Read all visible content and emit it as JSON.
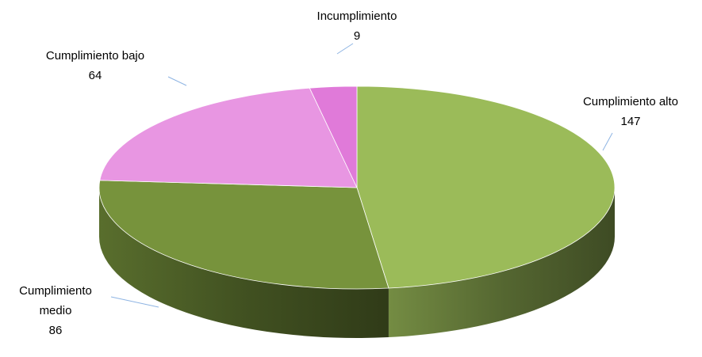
{
  "chart_data": {
    "type": "pie",
    "categories": [
      "Cumplimiento alto",
      "Cumplimiento medio",
      "Cumplimiento bajo",
      "Incumplimiento"
    ],
    "values": [
      147,
      86,
      64,
      9
    ],
    "colors": [
      "#9bbb59",
      "#77933c",
      "#e896e2",
      "#e07ad9"
    ]
  }
}
